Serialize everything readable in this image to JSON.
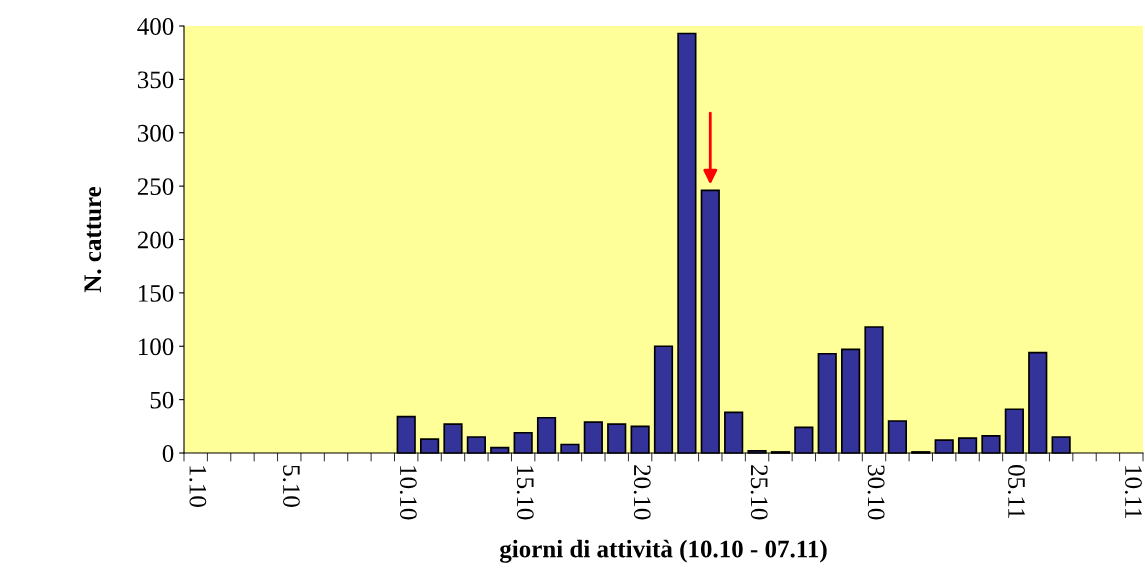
{
  "chart_data": {
    "type": "bar",
    "xlabel": "giorni di attività (10.10 - 07.11)",
    "ylabel": "N. catture",
    "categories": [
      "1.10",
      null,
      null,
      null,
      "5.10",
      null,
      null,
      null,
      null,
      "10.10",
      null,
      null,
      null,
      null,
      "15.10",
      null,
      null,
      null,
      null,
      "20.10",
      null,
      null,
      null,
      null,
      "25.10",
      null,
      null,
      null,
      null,
      "30.10",
      null,
      null,
      null,
      null,
      null,
      "05.11",
      null,
      null,
      null,
      null,
      "10.11"
    ],
    "values": [
      null,
      null,
      null,
      null,
      null,
      null,
      null,
      null,
      null,
      34,
      13,
      27,
      15,
      5,
      19,
      33,
      8,
      29,
      27,
      25,
      100,
      393,
      246,
      38,
      2,
      1,
      24,
      93,
      97,
      118,
      30,
      1,
      12,
      14,
      16,
      41,
      94,
      15,
      null,
      null,
      null
    ],
    "color": "#333399",
    "ylim": [
      0,
      400
    ],
    "yticks": [
      0,
      50,
      100,
      150,
      200,
      250,
      300,
      350,
      400
    ],
    "grid": false,
    "legend": false
  }
}
